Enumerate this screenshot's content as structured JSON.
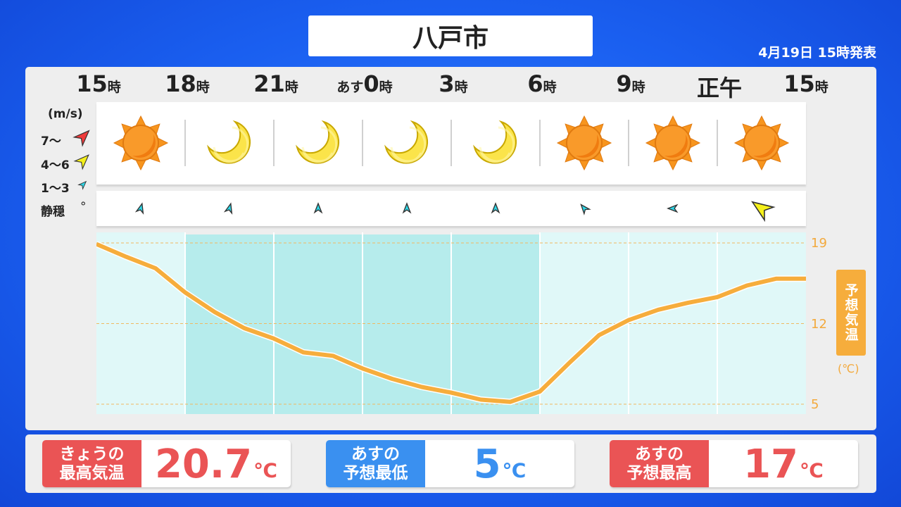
{
  "header": {
    "title": "八戸市",
    "issued": "4月19日 15時発表"
  },
  "hours": [
    {
      "pre": "",
      "num": "15",
      "suf": "時"
    },
    {
      "pre": "",
      "num": "18",
      "suf": "時"
    },
    {
      "pre": "",
      "num": "21",
      "suf": "時"
    },
    {
      "pre": "あす",
      "num": "0",
      "suf": "時"
    },
    {
      "pre": "",
      "num": "3",
      "suf": "時"
    },
    {
      "pre": "",
      "num": "6",
      "suf": "時"
    },
    {
      "pre": "",
      "num": "9",
      "suf": "時"
    },
    {
      "pre": "",
      "num": "正午",
      "suf": ""
    },
    {
      "pre": "",
      "num": "15",
      "suf": "時"
    }
  ],
  "weather": [
    "sun-icon",
    "moon-icon",
    "moon-icon",
    "moon-icon",
    "moon-icon",
    "sun-icon",
    "sun-icon",
    "sun-icon"
  ],
  "wind_legend": {
    "unit": "(m/s)",
    "items": [
      {
        "label": "7〜",
        "color": "#ee3b3b"
      },
      {
        "label": "4〜6",
        "color": "#f5f01a"
      },
      {
        "label": "1〜3",
        "color": "#2fd8e8"
      },
      {
        "label": "静穏",
        "symbol": "°"
      }
    ]
  },
  "wind": [
    {
      "class": "1〜3",
      "direction_deg": 15
    },
    {
      "class": "1〜3",
      "direction_deg": 15
    },
    {
      "class": "1〜3",
      "direction_deg": 0
    },
    {
      "class": "1〜3",
      "direction_deg": 0
    },
    {
      "class": "1〜3",
      "direction_deg": 0
    },
    {
      "class": "1〜3",
      "direction_deg": -40
    },
    {
      "class": "1〜3",
      "direction_deg": -90
    },
    {
      "class": "4〜6",
      "direction_deg": -55
    }
  ],
  "chart_data": {
    "type": "line",
    "ylabel": "予想気温",
    "unit": "(℃)",
    "yticks": [
      "19",
      "12",
      "5"
    ],
    "ylim": [
      4,
      20
    ],
    "x": [
      "15時",
      "16時",
      "17時",
      "18時",
      "19時",
      "20時",
      "21時",
      "22時",
      "23時",
      "0時",
      "1時",
      "2時",
      "3時",
      "4時",
      "5時",
      "6時",
      "7時",
      "8時",
      "9時",
      "10時",
      "11時",
      "12時",
      "13時",
      "14時",
      "15時"
    ],
    "values": [
      18.9,
      17.8,
      16.8,
      14.7,
      13.0,
      11.6,
      10.7,
      9.5,
      9.2,
      8.1,
      7.2,
      6.5,
      6.0,
      5.4,
      5.2,
      6.1,
      8.6,
      11.0,
      12.3,
      13.2,
      13.8,
      14.3,
      15.3,
      15.9,
      15.9
    ],
    "night_columns": [
      1,
      2,
      3,
      4
    ],
    "line_color": "#f6ad3c"
  },
  "summary": [
    {
      "label1": "きょうの",
      "label2": "最高気温",
      "value": "20.7",
      "unit": "℃",
      "color": "#ea5455"
    },
    {
      "label1": "あすの",
      "label2": "予想最低",
      "value": "5",
      "unit": "℃",
      "color": "#3a90f0"
    },
    {
      "label1": "あすの",
      "label2": "予想最高",
      "value": "17",
      "unit": "℃",
      "color": "#ea5455"
    }
  ]
}
